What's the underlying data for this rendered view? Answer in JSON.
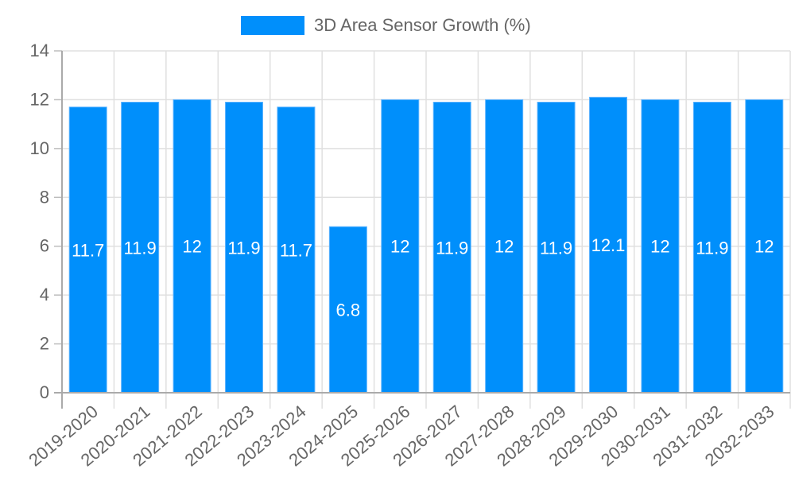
{
  "legend": {
    "label": "3D Area Sensor Growth (%)",
    "color": "#008ffb"
  },
  "chart_data": {
    "type": "bar",
    "title": "",
    "xlabel": "",
    "ylabel": "",
    "categories": [
      "2019-2020",
      "2020-2021",
      "2021-2022",
      "2022-2023",
      "2023-2024",
      "2024-2025",
      "2025-2026",
      "2026-2027",
      "2027-2028",
      "2028-2029",
      "2029-2030",
      "2030-2031",
      "2031-2032",
      "2032-2033"
    ],
    "series": [
      {
        "name": "3D Area Sensor Growth (%)",
        "color": "#008ffb",
        "values": [
          11.7,
          11.9,
          12,
          11.9,
          11.7,
          6.8,
          12,
          11.9,
          12,
          11.9,
          12.1,
          12,
          11.9,
          12
        ]
      }
    ],
    "ylim": [
      0,
      14
    ],
    "yticks": [
      0,
      2,
      4,
      6,
      8,
      10,
      12,
      14
    ],
    "grid": true,
    "legend_position": "top",
    "data_labels": true
  }
}
